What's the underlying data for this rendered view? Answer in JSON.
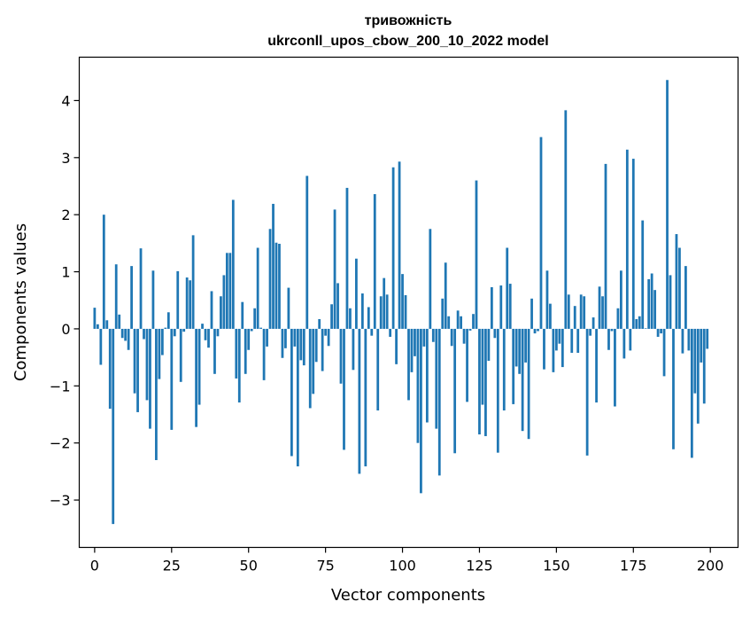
{
  "chart_data": {
    "type": "bar",
    "title": "тривожність",
    "subtitle": "ukrconll_upos_cbow_200_10_2022 model",
    "xlabel": "Vector components",
    "ylabel": "Components values",
    "xlim": [
      -5,
      209
    ],
    "ylim": [
      -3.83,
      4.76
    ],
    "xticks": [
      0,
      25,
      50,
      75,
      100,
      125,
      150,
      175,
      200
    ],
    "yticks": [
      -3,
      -2,
      -1,
      0,
      1,
      2,
      3,
      4
    ],
    "xtick_labels": [
      "0",
      "25",
      "50",
      "75",
      "100",
      "125",
      "150",
      "175",
      "200"
    ],
    "ytick_labels": [
      "−3",
      "−2",
      "−1",
      "0",
      "1",
      "2",
      "3",
      "4"
    ],
    "bar_color": "#1f77b4",
    "grid": false,
    "x": [
      0,
      1,
      2,
      3,
      4,
      5,
      6,
      7,
      8,
      9,
      10,
      11,
      12,
      13,
      14,
      15,
      16,
      17,
      18,
      19,
      20,
      21,
      22,
      23,
      24,
      25,
      26,
      27,
      28,
      29,
      30,
      31,
      32,
      33,
      34,
      35,
      36,
      37,
      38,
      39,
      40,
      41,
      42,
      43,
      44,
      45,
      46,
      47,
      48,
      49,
      50,
      51,
      52,
      53,
      54,
      55,
      56,
      57,
      58,
      59,
      60,
      61,
      62,
      63,
      64,
      65,
      66,
      67,
      68,
      69,
      70,
      71,
      72,
      73,
      74,
      75,
      76,
      77,
      78,
      79,
      80,
      81,
      82,
      83,
      84,
      85,
      86,
      87,
      88,
      89,
      90,
      91,
      92,
      93,
      94,
      95,
      96,
      97,
      98,
      99,
      100,
      101,
      102,
      103,
      104,
      105,
      106,
      107,
      108,
      109,
      110,
      111,
      112,
      113,
      114,
      115,
      116,
      117,
      118,
      119,
      120,
      121,
      122,
      123,
      124,
      125,
      126,
      127,
      128,
      129,
      130,
      131,
      132,
      133,
      134,
      135,
      136,
      137,
      138,
      139,
      140,
      141,
      142,
      143,
      144,
      145,
      146,
      147,
      148,
      149,
      150,
      151,
      152,
      153,
      154,
      155,
      156,
      157,
      158,
      159,
      160,
      161,
      162,
      163,
      164,
      165,
      166,
      167,
      168,
      169,
      170,
      171,
      172,
      173,
      174,
      175,
      176,
      177,
      178,
      179,
      180,
      181,
      182,
      183,
      184,
      185,
      186,
      187,
      188,
      189,
      190,
      191,
      192,
      193,
      194,
      195,
      196,
      197,
      198,
      199
    ],
    "values": [
      0.37,
      0.08,
      -0.63,
      2.0,
      0.15,
      -1.4,
      -3.42,
      1.13,
      0.25,
      -0.16,
      -0.21,
      -0.37,
      1.1,
      -1.13,
      -1.46,
      1.41,
      -0.18,
      -1.25,
      -1.75,
      1.02,
      -2.3,
      -0.88,
      -0.46,
      0.02,
      0.29,
      -1.77,
      -0.13,
      1.01,
      -0.93,
      -0.05,
      0.9,
      0.85,
      1.64,
      -1.72,
      -1.33,
      0.09,
      -0.2,
      -0.33,
      0.66,
      -0.79,
      -0.13,
      0.57,
      0.94,
      1.33,
      1.33,
      2.26,
      -0.87,
      -1.29,
      0.47,
      -0.79,
      -0.37,
      -0.04,
      0.36,
      1.42,
      0.02,
      -0.9,
      -0.31,
      1.75,
      2.19,
      1.51,
      1.49,
      -0.51,
      -0.34,
      0.72,
      -2.23,
      -0.31,
      -2.41,
      -0.55,
      -0.64,
      2.68,
      -1.39,
      -1.14,
      -0.58,
      0.17,
      -0.74,
      -0.12,
      -0.3,
      0.43,
      2.09,
      0.8,
      -0.96,
      -2.12,
      2.47,
      0.36,
      -0.72,
      1.23,
      -2.54,
      0.62,
      -2.41,
      0.38,
      -0.12,
      2.36,
      -1.43,
      0.57,
      0.89,
      0.6,
      -0.14,
      2.83,
      -0.62,
      2.93,
      0.96,
      0.59,
      -1.25,
      -0.76,
      -0.48,
      -2.0,
      -2.88,
      -0.31,
      -1.64,
      1.75,
      -0.23,
      -1.75,
      -2.57,
      0.53,
      1.16,
      0.22,
      -0.3,
      -2.18,
      0.32,
      0.22,
      -0.26,
      -1.28,
      -0.03,
      0.26,
      2.6,
      -1.85,
      -1.33,
      -1.88,
      -0.56,
      0.73,
      -0.16,
      -2.17,
      0.76,
      -1.43,
      1.42,
      0.79,
      -1.32,
      -0.66,
      -0.79,
      -1.79,
      -0.59,
      -1.93,
      0.53,
      -0.08,
      -0.04,
      3.36,
      -0.71,
      1.02,
      0.44,
      -0.76,
      -0.38,
      -0.26,
      -0.67,
      3.83,
      0.6,
      -0.42,
      0.4,
      -0.42,
      0.6,
      0.57,
      -2.22,
      -0.12,
      0.2,
      -1.29,
      0.74,
      0.57,
      2.89,
      -0.37,
      -0.04,
      -1.36,
      0.36,
      1.02,
      -0.52,
      3.14,
      -0.38,
      2.98,
      0.17,
      0.22,
      1.9,
      0.01,
      0.87,
      0.97,
      0.68,
      -0.14,
      -0.08,
      -0.83,
      4.36,
      0.94,
      -2.11,
      1.66,
      1.42,
      -0.43,
      1.1,
      -0.38,
      -2.26,
      -1.13,
      -1.66,
      -0.59,
      -1.31,
      -0.35
    ]
  }
}
